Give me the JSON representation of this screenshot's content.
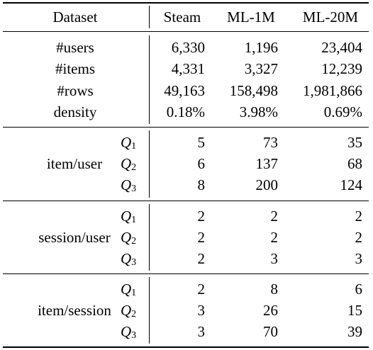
{
  "header": {
    "dataset": "Dataset",
    "steam": "Steam",
    "ml1m": "ML-1M",
    "ml20m": "ML-20M"
  },
  "stats": [
    {
      "label": "#users",
      "steam": "6,330",
      "ml1m": "1,196",
      "ml20m": "23,404"
    },
    {
      "label": "#items",
      "steam": "4,331",
      "ml1m": "3,327",
      "ml20m": "12,239"
    },
    {
      "label": "#rows",
      "steam": "49,163",
      "ml1m": "158,498",
      "ml20m": "1,981,866"
    },
    {
      "label": "density",
      "steam": "0.18%",
      "ml1m": "3.98%",
      "ml20m": "0.69%"
    }
  ],
  "groups": [
    {
      "label": "item/user",
      "rows": [
        {
          "q": "Q",
          "sub": "1",
          "steam": "5",
          "ml1m": "73",
          "ml20m": "35"
        },
        {
          "q": "Q",
          "sub": "2",
          "steam": "6",
          "ml1m": "137",
          "ml20m": "68"
        },
        {
          "q": "Q",
          "sub": "3",
          "steam": "8",
          "ml1m": "200",
          "ml20m": "124"
        }
      ]
    },
    {
      "label": "session/user",
      "rows": [
        {
          "q": "Q",
          "sub": "1",
          "steam": "2",
          "ml1m": "2",
          "ml20m": "2"
        },
        {
          "q": "Q",
          "sub": "2",
          "steam": "2",
          "ml1m": "2",
          "ml20m": "2"
        },
        {
          "q": "Q",
          "sub": "3",
          "steam": "2",
          "ml1m": "3",
          "ml20m": "3"
        }
      ]
    },
    {
      "label": "item/session",
      "rows": [
        {
          "q": "Q",
          "sub": "1",
          "steam": "2",
          "ml1m": "8",
          "ml20m": "6"
        },
        {
          "q": "Q",
          "sub": "2",
          "steam": "3",
          "ml1m": "26",
          "ml20m": "15"
        },
        {
          "q": "Q",
          "sub": "3",
          "steam": "3",
          "ml1m": "70",
          "ml20m": "39"
        }
      ]
    }
  ]
}
